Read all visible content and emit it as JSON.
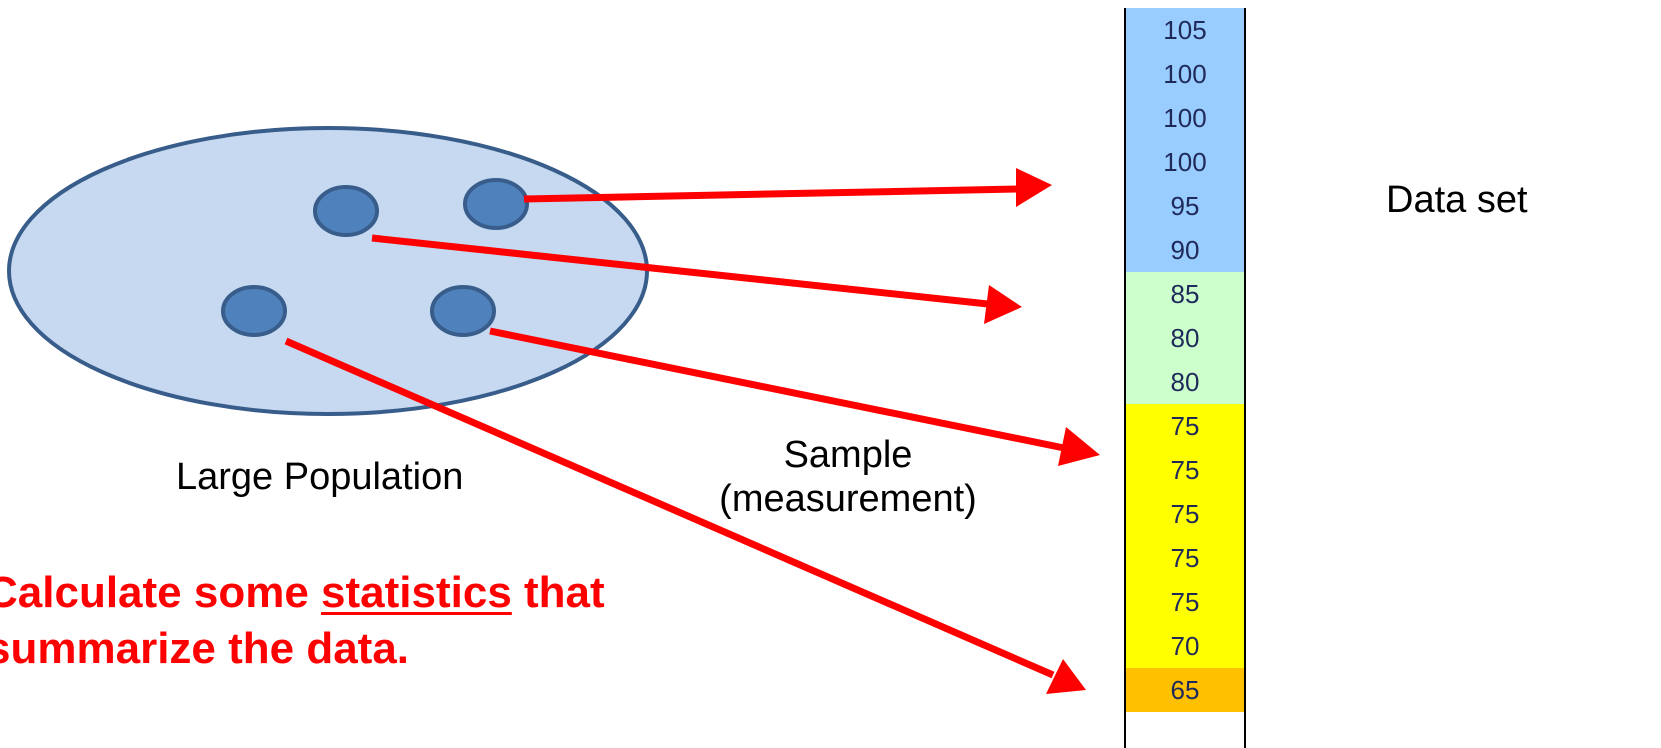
{
  "labels": {
    "population": "Large Population",
    "sample_line1": "Sample",
    "sample_line2": "(measurement)",
    "dataset": "Data set"
  },
  "statement": {
    "line1_before": "Calculate some ",
    "line1_emphasis": "statistics",
    "line1_after": " that",
    "line2": "summarize the data."
  },
  "data_set": {
    "values": [
      "105",
      "100",
      "100",
      "100",
      "95",
      "90",
      "85",
      "80",
      "80",
      "75",
      "75",
      "75",
      "75",
      "75",
      "70",
      "65"
    ],
    "band_colors": {
      "high": "#99ccff",
      "mid": "#ccffcc",
      "low": "#ffff00",
      "lowest": "#ffc000"
    },
    "value_bands": [
      "high",
      "high",
      "high",
      "high",
      "high",
      "high",
      "mid",
      "mid",
      "mid",
      "low",
      "low",
      "low",
      "low",
      "low",
      "low",
      "lowest"
    ]
  },
  "colors": {
    "population_fill": "#c6d9f1",
    "population_stroke": "#385d8a",
    "member_fill": "#4f81bd",
    "member_stroke": "#385d8a",
    "arrow": "#ff0000",
    "statement_text": "#ff0000"
  }
}
